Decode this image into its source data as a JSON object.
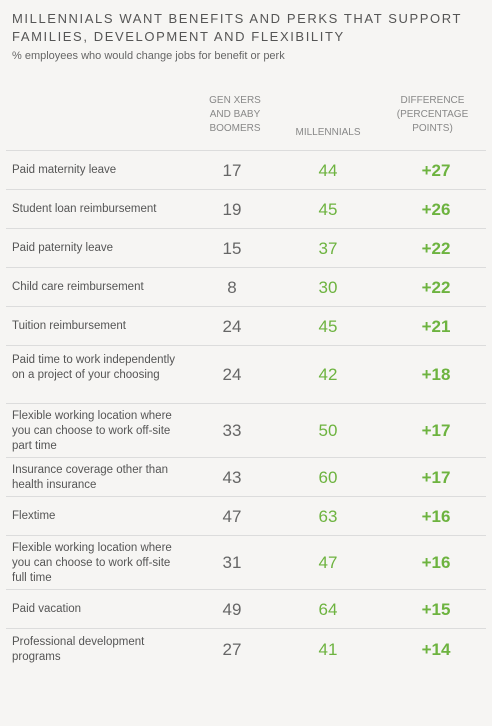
{
  "chart_data": {
    "type": "table",
    "title": "MILLENNIALS WANT BENEFITS AND PERKS THAT SUPPORT FAMILIES, DEVELOPMENT AND FLEXIBILITY",
    "subtitle": "% employees who would change jobs for benefit or perk",
    "columns": [
      "GEN XERS AND BABY BOOMERS",
      "MILLENNIALS",
      "DIFFERENCE (PERCENTAGE POINTS)"
    ],
    "rows": [
      {
        "label": "Paid maternity leave",
        "genx": "17",
        "mill": "44",
        "diff": "+27"
      },
      {
        "label": "Student loan reimbursement",
        "genx": "19",
        "mill": "45",
        "diff": "+26"
      },
      {
        "label": "Paid paternity leave",
        "genx": "15",
        "mill": "37",
        "diff": "+22"
      },
      {
        "label": "Child care reimbursement",
        "genx": "8",
        "mill": "30",
        "diff": "+22"
      },
      {
        "label": "Tuition reimbursement",
        "genx": "24",
        "mill": "45",
        "diff": "+21"
      },
      {
        "label": "Paid time to work independently on a project of your choosing",
        "genx": "24",
        "mill": "42",
        "diff": "+18"
      },
      {
        "label": "Flexible working location where you can choose to work off-site part time",
        "genx": "33",
        "mill": "50",
        "diff": "+17"
      },
      {
        "label": "Insurance coverage other than health insurance",
        "genx": "43",
        "mill": "60",
        "diff": "+17"
      },
      {
        "label": "Flextime",
        "genx": "47",
        "mill": "63",
        "diff": "+16"
      },
      {
        "label": "Flexible working location where you can choose to work off-site full time",
        "genx": "31",
        "mill": "47",
        "diff": "+16"
      },
      {
        "label": "Paid vacation",
        "genx": "49",
        "mill": "64",
        "diff": "+15"
      },
      {
        "label": "Professional development programs",
        "genx": "27",
        "mill": "41",
        "diff": "+14"
      }
    ]
  }
}
